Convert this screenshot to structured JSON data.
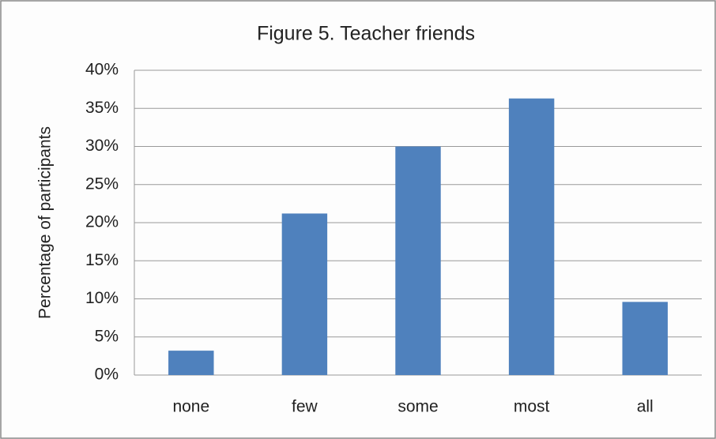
{
  "chart_data": {
    "type": "bar",
    "title": "Figure 5.  Teacher friends",
    "y_label": "Percentage of participants",
    "categories": [
      "none",
      "few",
      "some",
      "most",
      "all"
    ],
    "values": [
      3.2,
      21.2,
      30.0,
      36.3,
      9.6
    ],
    "color": "#4f81bd",
    "ylim": [
      0,
      40
    ],
    "yticks": [
      {
        "value": 0,
        "label": "0%"
      },
      {
        "value": 5,
        "label": "5%"
      },
      {
        "value": 10,
        "label": "10%"
      },
      {
        "value": 15,
        "label": "15%"
      },
      {
        "value": 20,
        "label": "20%"
      },
      {
        "value": 25,
        "label": "25%"
      },
      {
        "value": 30,
        "label": "30%"
      },
      {
        "value": 35,
        "label": "35%"
      },
      {
        "value": 40,
        "label": "40%"
      }
    ],
    "grid": true
  }
}
